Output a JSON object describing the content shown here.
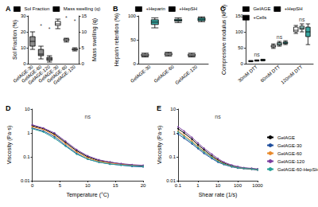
{
  "chart_data": [
    {
      "type": "boxplot",
      "title": "A",
      "categories": [
        "GelAGE-30",
        "GelAGE-60",
        "GelAGE-120",
        "GelAGE-30",
        "GelAGE-60",
        "GelAGE-120"
      ],
      "y_label": "Sol Fraction (%)",
      "y2_label": "Mass swelling (q)",
      "ylim": [
        0,
        30
      ],
      "yticks": [
        0,
        10,
        20,
        30
      ],
      "y2lim": [
        0,
        15
      ],
      "y2ticks": [
        0,
        5,
        10,
        15
      ],
      "grid": false,
      "legend": "top",
      "series": [
        {
          "name": "Sol Fraction",
          "color": "#8c8c8c",
          "values": [
            [
              9,
              11,
              14,
              17,
              20
            ],
            [
              3,
              5,
              6,
              9,
              11
            ],
            [
              1,
              2,
              3,
              4,
              5
            ],
            null,
            null,
            null
          ]
        },
        {
          "name": "Mass swelling (q)",
          "color": "#ffffff",
          "axis": "y2",
          "values": [
            null,
            null,
            null,
            [
              11,
              12,
              12.5,
              13.3,
              14
            ],
            [
              6.8,
              7.2,
              7.5,
              7.8,
              8
            ],
            [
              4,
              4.3,
              4.5,
              4.7,
              5
            ]
          ]
        }
      ],
      "annotations": [
        {
          "text": "*",
          "x": 1,
          "y": 24
        },
        {
          "text": "*",
          "x": 2,
          "y": 22
        },
        {
          "text": "*",
          "x": 4,
          "y": 29
        },
        {
          "text": "*",
          "x": 5,
          "y": 27
        }
      ]
    },
    {
      "type": "boxplot",
      "title": "B",
      "categories": [
        "GelAGE-30",
        "GelAGE-60",
        "GelAGE-120"
      ],
      "y_label": "Heparin retention (%)",
      "ylim": [
        0,
        100
      ],
      "yticks": [
        0,
        50,
        100
      ],
      "grid": false,
      "legend": "top",
      "series": [
        {
          "name": "+Heparin",
          "color": "#ffffff",
          "values": [
            [
              14,
              16,
              18,
              20,
              22
            ],
            [
              16,
              18,
              20,
              22,
              24
            ],
            [
              14,
              16,
              18,
              20,
              22
            ]
          ]
        },
        {
          "name": "+HepSH",
          "color": "#3aa6a0",
          "values": [
            [
              75,
              82,
              87,
              92,
              96
            ],
            [
              86,
              89,
              91,
              93,
              96
            ],
            [
              88,
              90,
              93,
              96,
              98
            ]
          ]
        }
      ]
    },
    {
      "type": "boxplot",
      "title": "C",
      "categories": [
        "30mM DTT",
        "60mM DTT",
        "120mM DTT"
      ],
      "y_label": "Compressive modulus (kPa)",
      "ylim": [
        0,
        150
      ],
      "yticks": [
        0,
        50,
        100,
        150
      ],
      "grid": false,
      "legend": "top",
      "series": [
        {
          "name": "GelAGE",
          "color": "#ffffff",
          "values": [
            [
              6,
              7,
              8,
              9,
              10
            ],
            [
              48,
              52,
              55,
              58,
              62
            ],
            [
              95,
              100,
              105,
              115,
              120
            ]
          ]
        },
        {
          "name": "+HepSH",
          "color": "#a9dcd6",
          "values": [
            [
              8,
              9,
              10,
              11,
              12
            ],
            [
              55,
              58,
              62,
              66,
              70
            ],
            [
              100,
              108,
              112,
              118,
              125
            ]
          ]
        },
        {
          "name": "+Cells",
          "color": "#3aa6a0",
          "values": [
            [
              9,
              10,
              11,
              13,
              14
            ],
            [
              60,
              63,
              65,
              68,
              72
            ],
            [
              60,
              85,
              100,
              115,
              125
            ]
          ]
        }
      ],
      "annotations": [
        {
          "text": "ns",
          "x": 0,
          "y": 30
        },
        {
          "text": "ns",
          "x": 1,
          "y": 85
        },
        {
          "text": "ns",
          "x": 2,
          "y": 140
        }
      ]
    },
    {
      "type": "line",
      "title": "D",
      "x_label": "Temperature (°C)",
      "y_label": "Viscosity (Pa·s)",
      "log": "y",
      "grid": false,
      "xlim": [
        0,
        20
      ],
      "xticks": [
        0,
        5,
        10,
        15,
        20
      ],
      "ylim": [
        0.01,
        10
      ],
      "yticks": [
        0.01,
        0.1,
        1,
        10
      ],
      "x": [
        0,
        2,
        4,
        6,
        8,
        10,
        12,
        14,
        16,
        18,
        20
      ],
      "series": [
        {
          "name": "GelAGE",
          "color": "#000000",
          "values": [
            2.0,
            1.5,
            0.9,
            0.4,
            0.18,
            0.1,
            0.07,
            0.06,
            0.05,
            0.045,
            0.04
          ]
        },
        {
          "name": "GelAGE-30",
          "color": "#1f4e9c",
          "values": [
            1.6,
            1.2,
            0.7,
            0.3,
            0.14,
            0.08,
            0.06,
            0.05,
            0.045,
            0.04,
            0.038
          ]
        },
        {
          "name": "GelAGE-60",
          "color": "#e8892b",
          "values": [
            1.8,
            1.4,
            0.8,
            0.35,
            0.16,
            0.09,
            0.065,
            0.055,
            0.05,
            0.045,
            0.042
          ]
        },
        {
          "name": "GelAGE-120",
          "color": "#7b3fa0",
          "values": [
            2.2,
            1.6,
            1.0,
            0.45,
            0.2,
            0.11,
            0.075,
            0.06,
            0.052,
            0.047,
            0.044
          ]
        },
        {
          "name": "GelAGE-60-HepSH",
          "color": "#2aa198",
          "values": [
            1.5,
            1.1,
            0.6,
            0.28,
            0.13,
            0.08,
            0.06,
            0.05,
            0.045,
            0.042,
            0.04
          ]
        }
      ],
      "annotations": [
        {
          "text": "ns",
          "x": 10,
          "y": 5
        }
      ]
    },
    {
      "type": "line",
      "title": "E",
      "x_label": "Shear rate (1/s)",
      "y_label": "Viscosity (Pa·s)",
      "log": true,
      "grid": false,
      "legend": "right",
      "xlim": [
        0.1,
        1000
      ],
      "xticks": [
        0.1,
        1,
        10,
        100,
        1000
      ],
      "ylim": [
        0.01,
        10
      ],
      "yticks": [
        0.01,
        0.1,
        1,
        10
      ],
      "x": [
        0.1,
        0.2,
        0.5,
        1,
        2,
        5,
        10,
        20,
        50,
        100,
        200,
        500,
        1000
      ],
      "series": [
        {
          "name": "GelAGE",
          "color": "#000000",
          "values": [
            1.5,
            1.0,
            0.55,
            0.32,
            0.2,
            0.11,
            0.075,
            0.055,
            0.042,
            0.037,
            0.034,
            0.032,
            0.03
          ]
        },
        {
          "name": "GelAGE-30",
          "color": "#1f4e9c",
          "values": [
            0.9,
            0.6,
            0.35,
            0.22,
            0.14,
            0.085,
            0.06,
            0.048,
            0.038,
            0.034,
            0.032,
            0.03,
            0.028
          ]
        },
        {
          "name": "GelAGE-60",
          "color": "#e8892b",
          "values": [
            1.2,
            0.8,
            0.45,
            0.27,
            0.17,
            0.1,
            0.07,
            0.052,
            0.04,
            0.036,
            0.033,
            0.031,
            0.029
          ]
        },
        {
          "name": "GelAGE-120",
          "color": "#7b3fa0",
          "values": [
            1.8,
            1.2,
            0.65,
            0.38,
            0.23,
            0.13,
            0.085,
            0.06,
            0.045,
            0.039,
            0.035,
            0.033,
            0.031
          ]
        },
        {
          "name": "GelAGE-60-HepSH",
          "color": "#2aa198",
          "values": [
            1.1,
            0.7,
            0.4,
            0.25,
            0.16,
            0.095,
            0.065,
            0.05,
            0.04,
            0.035,
            0.033,
            0.031,
            0.029
          ]
        }
      ],
      "annotations": [
        {
          "text": "ns",
          "x": 10,
          "y": 5
        }
      ]
    }
  ]
}
